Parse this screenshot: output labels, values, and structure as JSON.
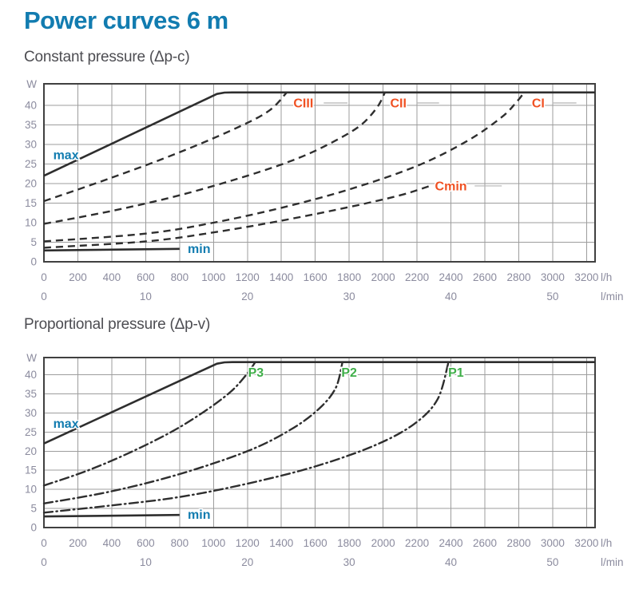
{
  "page": {
    "title": "Power curves 6 m"
  },
  "colors": {
    "title": "#127cb0",
    "subtitle": "#4d4d52",
    "axis_text": "#8b8b9e",
    "grid": "#9d9d9d",
    "frame": "#404040",
    "curve": "#2e2e2e",
    "leader": "#b4b4b4",
    "blue": "#127cb0",
    "orange": "#f05123",
    "green": "#3fae49"
  },
  "chart_data": [
    {
      "type": "line",
      "title": "Constant pressure (Δp-c)",
      "ylabel": "W",
      "x_unit_primary": "l/h",
      "x_unit_secondary": "l/min",
      "xlim": [
        0,
        3250
      ],
      "ylim": [
        0,
        45.5
      ],
      "grid": true,
      "x_ticks_lh": [
        0,
        200,
        400,
        600,
        800,
        1000,
        1200,
        1400,
        1600,
        1800,
        2000,
        2200,
        2400,
        2600,
        2800,
        3000,
        3200
      ],
      "x_ticks_lmin": [
        0,
        10,
        20,
        30,
        40,
        50
      ],
      "lmin_to_lh_factor": 60,
      "y_ticks": [
        0,
        5,
        10,
        15,
        20,
        25,
        30,
        35,
        40
      ],
      "series": [
        {
          "name": "max",
          "dash": "solid",
          "width": 2.6,
          "label": "max",
          "label_color": "blue",
          "label_pos": [
            130,
            27.3
          ],
          "points": [
            [
              0,
              22
            ],
            [
              1020,
              42.9
            ],
            [
              1065,
              43.25
            ],
            [
              1110,
              43.3
            ],
            [
              3250,
              43.3
            ]
          ]
        },
        {
          "name": "min",
          "dash": "solid",
          "width": 2.6,
          "label": "min",
          "label_color": "blue",
          "label_pos": [
            915,
            3.4
          ],
          "points": [
            [
              0,
              2.9
            ],
            [
              800,
              3.3
            ]
          ]
        },
        {
          "name": "CIII",
          "dash": "dashed",
          "width": 2.4,
          "label": "CIII",
          "label_color": "orange",
          "label_pos": [
            1530,
            40.6
          ],
          "leader": [
            1650,
            1790
          ],
          "points": [
            [
              0,
              15.5
            ],
            [
              400,
              21.5
            ],
            [
              800,
              28
            ],
            [
              1150,
              34.5
            ],
            [
              1330,
              38.7
            ],
            [
              1430,
              43.2
            ]
          ]
        },
        {
          "name": "CII",
          "dash": "dashed",
          "width": 2.4,
          "label": "CII",
          "label_color": "orange",
          "label_pos": [
            2090,
            40.6
          ],
          "leader": [
            2200,
            2330
          ],
          "points": [
            [
              0,
              9.7
            ],
            [
              400,
              13
            ],
            [
              800,
              17
            ],
            [
              1200,
              22
            ],
            [
              1500,
              26.5
            ],
            [
              1720,
              31
            ],
            [
              1870,
              35
            ],
            [
              1965,
              39.5
            ],
            [
              2010,
              43.2
            ]
          ]
        },
        {
          "name": "CI",
          "dash": "dashed",
          "width": 2.4,
          "label": "CI",
          "label_color": "orange",
          "label_pos": [
            2915,
            40.6
          ],
          "leader": [
            3000,
            3140
          ],
          "points": [
            [
              0,
              5.2
            ],
            [
              600,
              7.2
            ],
            [
              1000,
              10
            ],
            [
              1400,
              13.8
            ],
            [
              1800,
              18.5
            ],
            [
              2200,
              24.5
            ],
            [
              2500,
              31
            ],
            [
              2700,
              37
            ],
            [
              2790,
              41
            ],
            [
              2830,
              43.2
            ]
          ]
        },
        {
          "name": "Cmin",
          "dash": "dashed",
          "width": 2.4,
          "label": "Cmin",
          "label_color": "orange",
          "label_pos": [
            2400,
            19.4
          ],
          "leader": [
            2540,
            2700
          ],
          "points": [
            [
              0,
              3.6
            ],
            [
              600,
              5.2
            ],
            [
              1000,
              7.5
            ],
            [
              1400,
              10.5
            ],
            [
              1800,
              14
            ],
            [
              2100,
              17
            ],
            [
              2270,
              19.3
            ]
          ]
        }
      ]
    },
    {
      "type": "line",
      "title": "Proportional pressure (Δp-v)",
      "ylabel": "W",
      "x_unit_primary": "l/h",
      "x_unit_secondary": "l/min",
      "xlim": [
        0,
        3250
      ],
      "ylim": [
        0,
        44.5
      ],
      "grid": true,
      "x_ticks_lh": [
        0,
        200,
        400,
        600,
        800,
        1000,
        1200,
        1400,
        1600,
        1800,
        2000,
        2200,
        2400,
        2600,
        2800,
        3000,
        3200
      ],
      "x_ticks_lmin": [
        0,
        10,
        20,
        30,
        40,
        50
      ],
      "lmin_to_lh_factor": 60,
      "y_ticks": [
        0,
        5,
        10,
        15,
        20,
        25,
        30,
        35,
        40
      ],
      "series": [
        {
          "name": "max",
          "dash": "solid",
          "width": 2.6,
          "label": "max",
          "label_color": "blue",
          "label_pos": [
            130,
            27.3
          ],
          "points": [
            [
              0,
              22
            ],
            [
              1020,
              42.9
            ],
            [
              1065,
              43.25
            ],
            [
              1110,
              43.3
            ],
            [
              3250,
              43.3
            ]
          ]
        },
        {
          "name": "min",
          "dash": "solid",
          "width": 2.6,
          "label": "min",
          "label_color": "blue",
          "label_pos": [
            915,
            3.4
          ],
          "points": [
            [
              0,
              2.9
            ],
            [
              800,
              3.3
            ]
          ]
        },
        {
          "name": "P3",
          "dash": "dashdot",
          "width": 2.4,
          "label": "P3",
          "label_color": "green",
          "label_pos": [
            1250,
            40.6
          ],
          "points": [
            [
              0,
              11
            ],
            [
              250,
              14.8
            ],
            [
              500,
              19.5
            ],
            [
              750,
              25
            ],
            [
              950,
              30.5
            ],
            [
              1100,
              35.5
            ],
            [
              1190,
              39.8
            ],
            [
              1245,
              43.2
            ]
          ]
        },
        {
          "name": "P2",
          "dash": "dashdot",
          "width": 2.4,
          "label": "P2",
          "label_color": "green",
          "label_pos": [
            1800,
            40.6
          ],
          "points": [
            [
              0,
              6.3
            ],
            [
              400,
              9.5
            ],
            [
              800,
              14
            ],
            [
              1200,
              20
            ],
            [
              1450,
              25.5
            ],
            [
              1620,
              31
            ],
            [
              1720,
              36.5
            ],
            [
              1760,
              43.2
            ]
          ]
        },
        {
          "name": "P1",
          "dash": "dashdot",
          "width": 2.4,
          "label": "P1",
          "label_color": "green",
          "label_pos": [
            2430,
            40.6
          ],
          "points": [
            [
              0,
              3.9
            ],
            [
              400,
              5.8
            ],
            [
              800,
              8
            ],
            [
              1200,
              11.5
            ],
            [
              1600,
              16
            ],
            [
              1950,
              21.5
            ],
            [
              2180,
              27
            ],
            [
              2320,
              33.5
            ],
            [
              2385,
              43.2
            ]
          ]
        }
      ]
    }
  ]
}
